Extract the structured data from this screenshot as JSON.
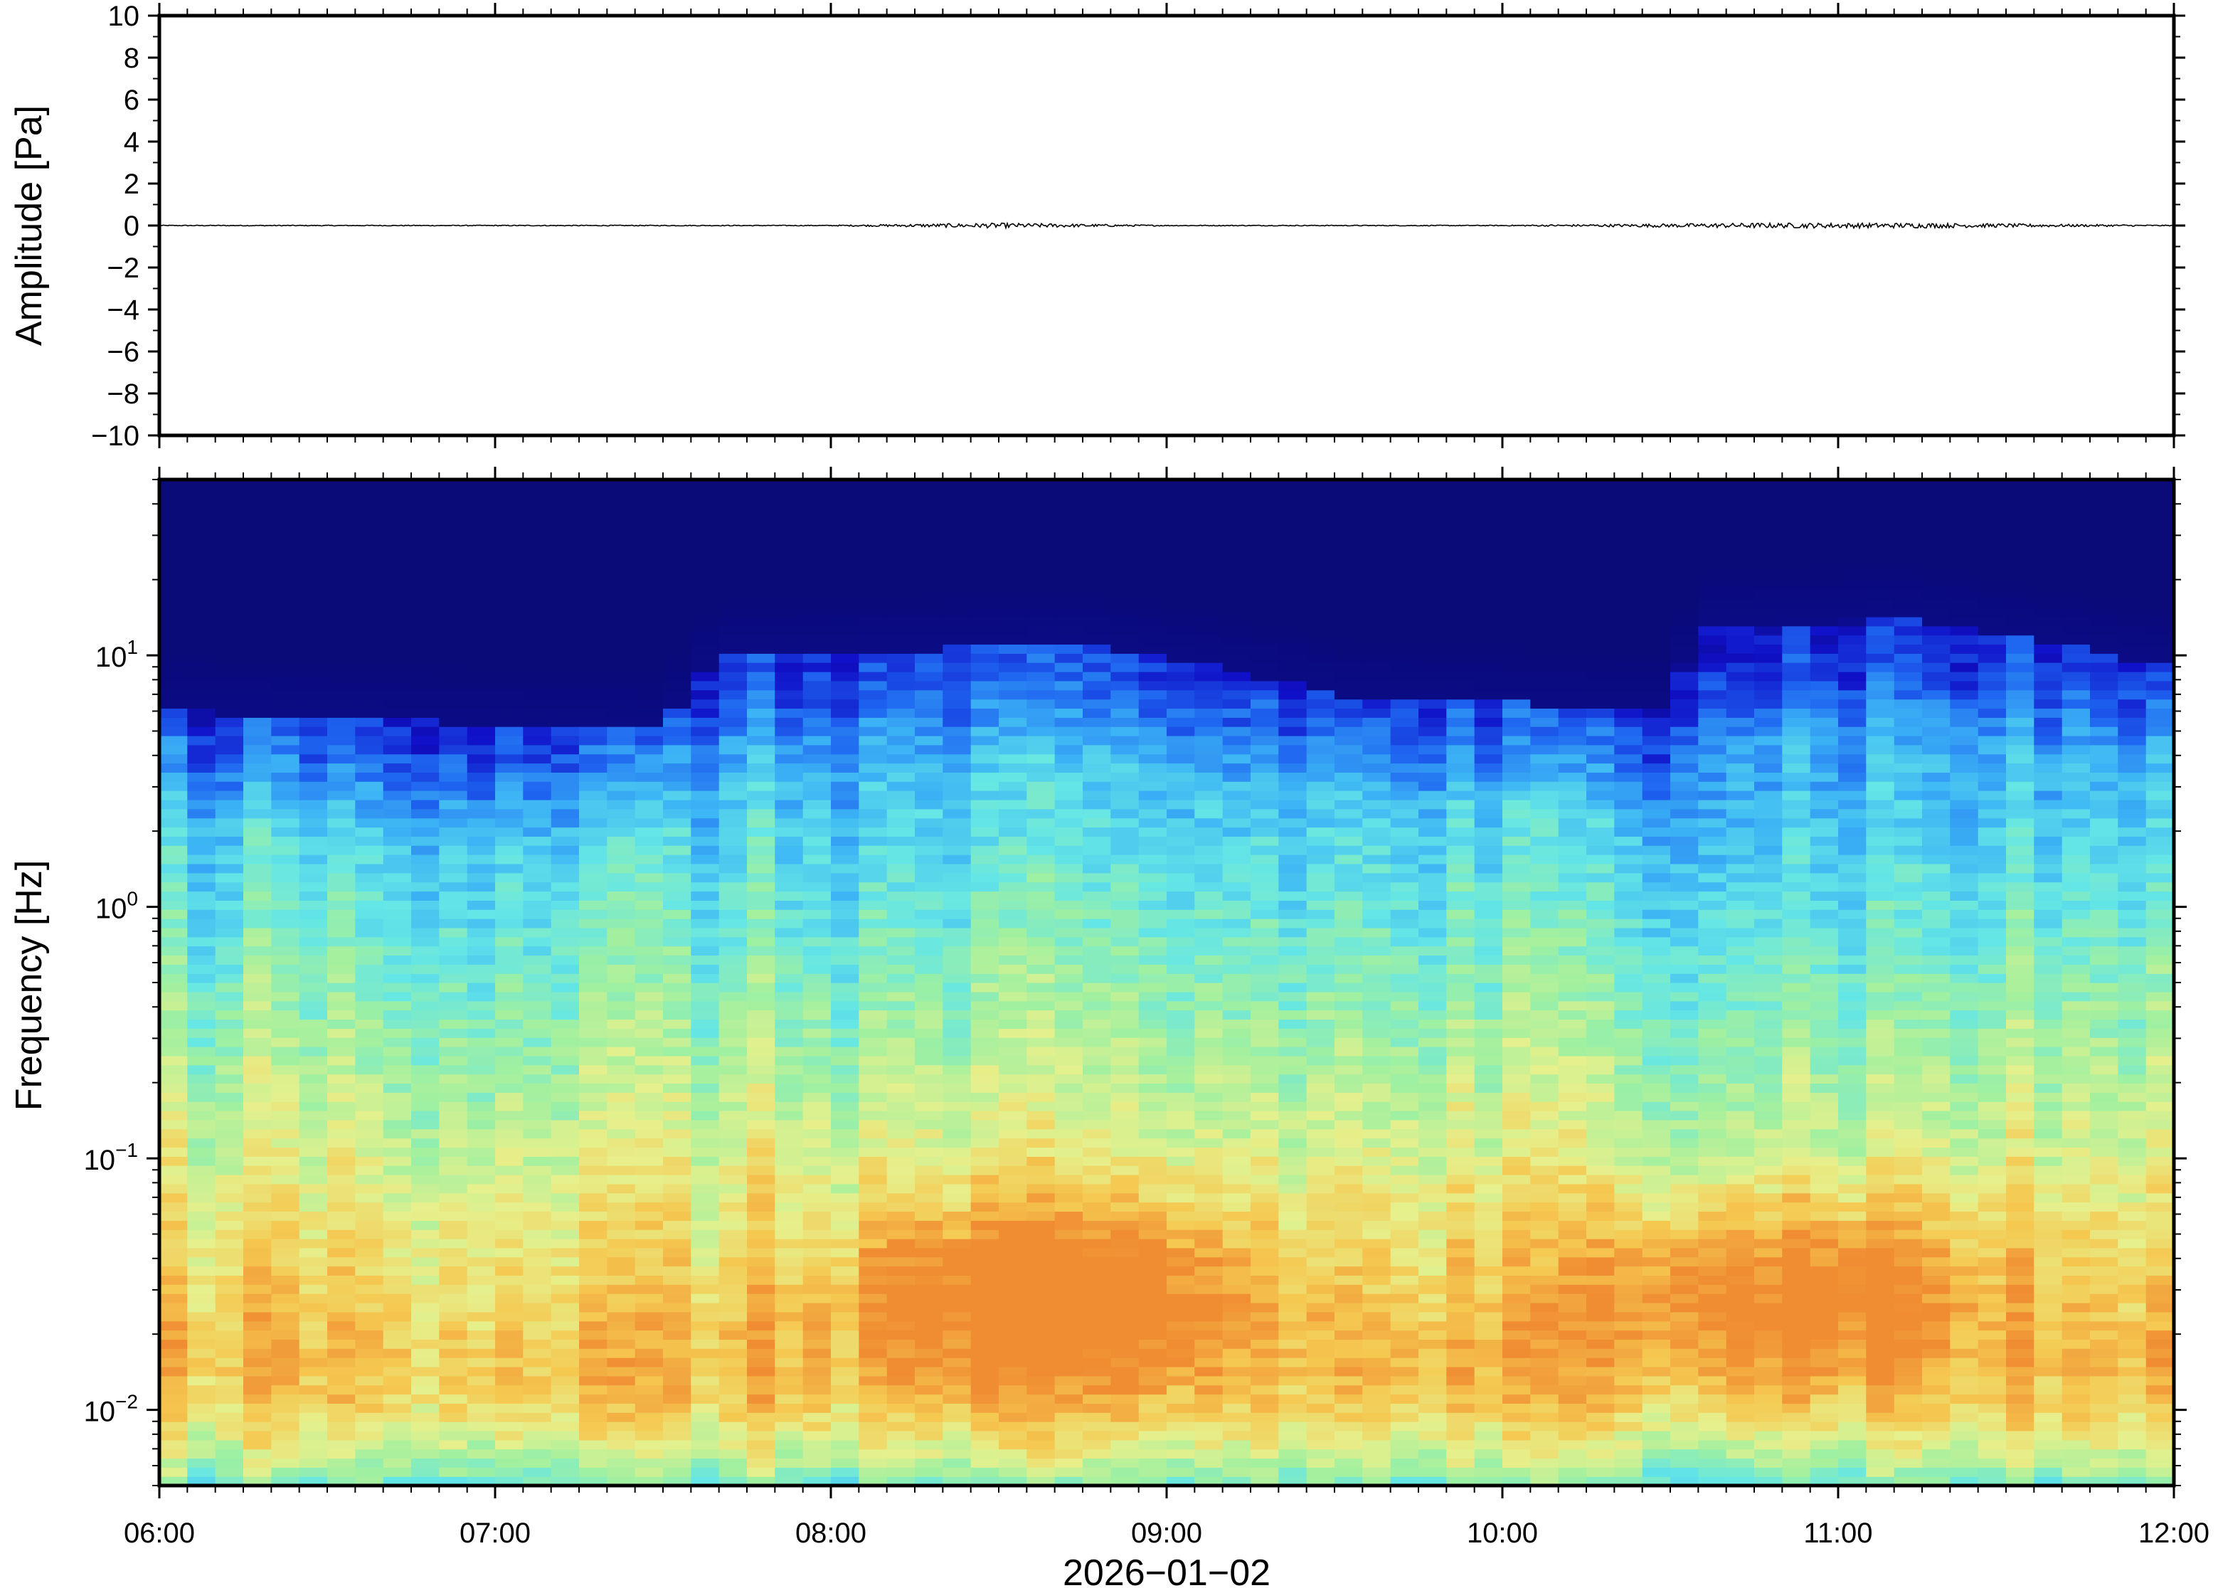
{
  "chart_data": [
    {
      "type": "line",
      "ylabel": "Amplitude [Pa]",
      "ylim": [
        -10,
        10
      ],
      "yticks": [
        "10",
        "8",
        "6",
        "4",
        "2",
        "0",
        "−2",
        "−4",
        "−6",
        "−8",
        "−10"
      ],
      "ytick_values": [
        10,
        8,
        6,
        4,
        2,
        0,
        -2,
        -4,
        -6,
        -8,
        -10
      ],
      "x_start": "06:00",
      "x_end": "12:00",
      "series": [
        {
          "x": [
            "06:00",
            "07:00",
            "08:00",
            "08:30",
            "09:00",
            "10:00",
            "10:45",
            "11:00",
            "11:15",
            "12:00"
          ],
          "values": [
            0.0,
            0.0,
            0.0,
            0.1,
            0.0,
            0.0,
            0.1,
            0.1,
            0.1,
            0.0
          ]
        }
      ],
      "line_color": "#000000",
      "grid": false
    },
    {
      "type": "heatmap",
      "ylabel": "Frequency [Hz]",
      "yscale": "log",
      "ylim": [
        0.005,
        50
      ],
      "ytick_values": [
        0.01,
        0.1,
        1,
        10
      ],
      "yticks": [
        {
          "base": "10",
          "exp": "−2"
        },
        {
          "base": "10",
          "exp": "−1"
        },
        {
          "base": "10",
          "exp": "0"
        },
        {
          "base": "10",
          "exp": "1"
        }
      ],
      "xlabel": "2026−01−02",
      "xticks": [
        "06:00",
        "07:00",
        "08:00",
        "09:00",
        "10:00",
        "11:00",
        "12:00"
      ],
      "x_start": "06:00",
      "x_end": "12:00",
      "colormap": [
        "#0a0a78",
        "#1010c8",
        "#1e64f0",
        "#3cb4f5",
        "#64e6e6",
        "#a0f0a0",
        "#e6f08c",
        "#f5c850",
        "#f08c32"
      ],
      "high_freq_cutoff_hz": [
        {
          "time": "06:00",
          "value": 6
        },
        {
          "time": "07:30",
          "value": 5
        },
        {
          "time": "07:40",
          "value": 10
        },
        {
          "time": "08:45",
          "value": 11
        },
        {
          "time": "09:30",
          "value": 7
        },
        {
          "time": "10:30",
          "value": 6
        },
        {
          "time": "10:35",
          "value": 13
        },
        {
          "time": "11:10",
          "value": 14
        },
        {
          "time": "12:00",
          "value": 9
        }
      ],
      "low_freq_energy_peaks": [
        {
          "time": "08:28",
          "freq_hz": 0.03
        },
        {
          "time": "08:50",
          "freq_hz": 0.03
        },
        {
          "time": "10:40",
          "freq_hz": 0.03
        },
        {
          "time": "11:00",
          "freq_hz": 0.05
        }
      ],
      "grid": false
    }
  ]
}
